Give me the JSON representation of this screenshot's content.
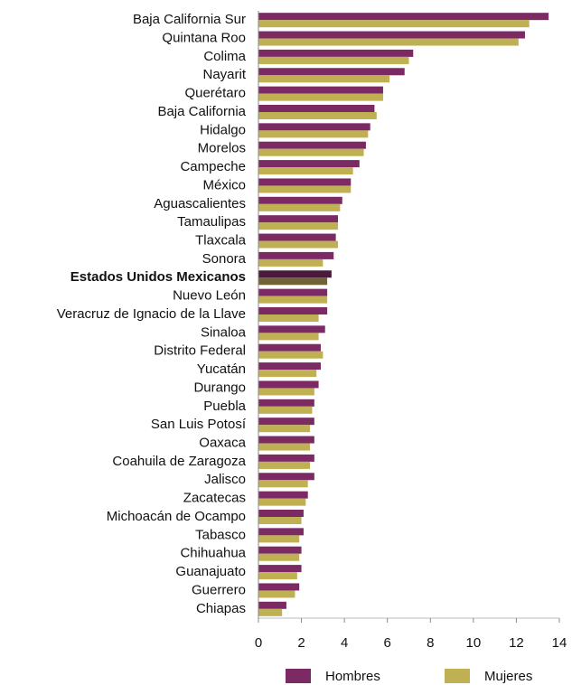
{
  "chart_data": {
    "type": "bar",
    "orientation": "horizontal",
    "categories": [
      "Baja California Sur",
      "Quintana Roo",
      "Colima",
      "Nayarit",
      "Querétaro",
      "Baja California",
      "Hidalgo",
      "Morelos",
      "Campeche",
      "México",
      "Aguascalientes",
      "Tamaulipas",
      "Tlaxcala",
      "Sonora",
      "Estados Unidos Mexicanos",
      "Nuevo León",
      "Veracruz de Ignacio de la Llave",
      "Sinaloa",
      "Distrito Federal",
      "Yucatán",
      "Durango",
      "Puebla",
      "San Luis Potosí",
      "Oaxaca",
      "Coahuila de Zaragoza",
      "Jalisco",
      "Zacatecas",
      "Michoacán de Ocampo",
      "Tabasco",
      "Chihuahua",
      "Guanajuato",
      "Guerrero",
      "Chiapas"
    ],
    "series": [
      {
        "name": "Hombres",
        "color": "#7b2a64",
        "values": [
          13.5,
          12.4,
          7.2,
          6.8,
          5.8,
          5.4,
          5.2,
          5.0,
          4.7,
          4.3,
          3.9,
          3.7,
          3.6,
          3.5,
          3.4,
          3.2,
          3.2,
          3.1,
          2.9,
          2.9,
          2.8,
          2.6,
          2.6,
          2.6,
          2.6,
          2.6,
          2.3,
          2.1,
          2.1,
          2.0,
          2.0,
          1.9,
          1.3
        ]
      },
      {
        "name": "Mujeres",
        "color": "#bfb053",
        "values": [
          12.6,
          12.1,
          7.0,
          6.1,
          5.8,
          5.5,
          5.1,
          4.9,
          4.4,
          4.3,
          3.8,
          3.7,
          3.7,
          3.0,
          3.2,
          3.2,
          2.8,
          2.8,
          3.0,
          2.7,
          2.6,
          2.5,
          2.4,
          2.4,
          2.4,
          2.3,
          2.2,
          2.0,
          1.9,
          1.9,
          1.8,
          1.7,
          1.1
        ]
      }
    ],
    "highlight": {
      "category": 14,
      "colors": [
        "#4a1a3c",
        "#6e6436"
      ]
    },
    "xlim": [
      0,
      14
    ],
    "xticks": [
      0,
      2,
      4,
      6,
      8,
      10,
      12,
      14
    ],
    "legend": "bottom"
  }
}
